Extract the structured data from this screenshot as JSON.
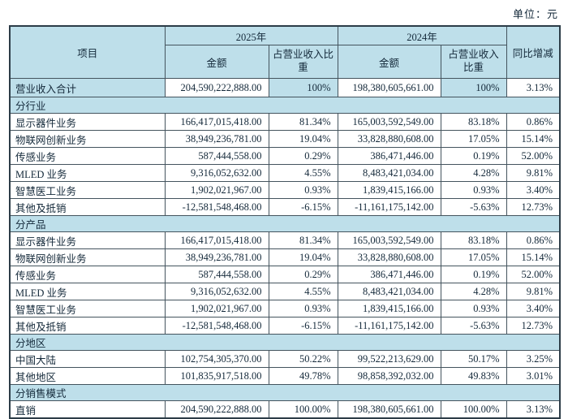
{
  "unit_label": "单位：元",
  "colors": {
    "header_blue": "#bedfea",
    "border": "#44545e",
    "text": "#14293a"
  },
  "table": {
    "header": {
      "item": "项目",
      "y2025": "2025年",
      "y2024": "2024年",
      "amount": "金额",
      "ratio": "占营业收入比重",
      "yoy": "同比增减"
    },
    "rows": [
      {
        "type": "total",
        "label": "营业收入合计",
        "a2025": "204,590,222,888.00",
        "p2025": "100%",
        "a2024": "198,380,605,661.00",
        "p2024": "100%",
        "yoy": "3.13%"
      },
      {
        "type": "section",
        "label": "分行业"
      },
      {
        "type": "data",
        "label": "显示器件业务",
        "a2025": "166,417,015,418.00",
        "p2025": "81.34%",
        "a2024": "165,003,592,549.00",
        "p2024": "83.18%",
        "yoy": "0.86%"
      },
      {
        "type": "data",
        "label": "物联网创新业务",
        "a2025": "38,949,236,781.00",
        "p2025": "19.04%",
        "a2024": "33,828,880,608.00",
        "p2024": "17.05%",
        "yoy": "15.14%"
      },
      {
        "type": "data",
        "label": "传感业务",
        "a2025": "587,444,558.00",
        "p2025": "0.29%",
        "a2024": "386,471,446.00",
        "p2024": "0.19%",
        "yoy": "52.00%"
      },
      {
        "type": "data",
        "label": "MLED 业务",
        "a2025": "9,316,052,632.00",
        "p2025": "4.55%",
        "a2024": "8,483,421,034.00",
        "p2024": "4.28%",
        "yoy": "9.81%"
      },
      {
        "type": "data",
        "label": "智慧医工业务",
        "a2025": "1,902,021,967.00",
        "p2025": "0.93%",
        "a2024": "1,839,415,166.00",
        "p2024": "0.93%",
        "yoy": "3.40%"
      },
      {
        "type": "data",
        "label": "其他及抵销",
        "a2025": "-12,581,548,468.00",
        "p2025": "-6.15%",
        "a2024": "-11,161,175,142.00",
        "p2024": "-5.63%",
        "yoy": "12.73%"
      },
      {
        "type": "section",
        "label": "分产品"
      },
      {
        "type": "data",
        "label": "显示器件业务",
        "a2025": "166,417,015,418.00",
        "p2025": "81.34%",
        "a2024": "165,003,592,549.00",
        "p2024": "83.18%",
        "yoy": "0.86%"
      },
      {
        "type": "data",
        "label": "物联网创新业务",
        "a2025": "38,949,236,781.00",
        "p2025": "19.04%",
        "a2024": "33,828,880,608.00",
        "p2024": "17.05%",
        "yoy": "15.14%"
      },
      {
        "type": "data",
        "label": "传感业务",
        "a2025": "587,444,558.00",
        "p2025": "0.29%",
        "a2024": "386,471,446.00",
        "p2024": "0.19%",
        "yoy": "52.00%"
      },
      {
        "type": "data",
        "label": "MLED 业务",
        "a2025": "9,316,052,632.00",
        "p2025": "4.55%",
        "a2024": "8,483,421,034.00",
        "p2024": "4.28%",
        "yoy": "9.81%"
      },
      {
        "type": "data",
        "label": "智慧医工业务",
        "a2025": "1,902,021,967.00",
        "p2025": "0.93%",
        "a2024": "1,839,415,166.00",
        "p2024": "0.93%",
        "yoy": "3.40%"
      },
      {
        "type": "data",
        "label": "其他及抵销",
        "a2025": "-12,581,548,468.00",
        "p2025": "-6.15%",
        "a2024": "-11,161,175,142.00",
        "p2024": "-5.63%",
        "yoy": "12.73%"
      },
      {
        "type": "section",
        "label": "分地区"
      },
      {
        "type": "data",
        "label": "中国大陆",
        "a2025": "102,754,305,370.00",
        "p2025": "50.22%",
        "a2024": "99,522,213,629.00",
        "p2024": "50.17%",
        "yoy": "3.25%"
      },
      {
        "type": "data",
        "label": "其他地区",
        "a2025": "101,835,917,518.00",
        "p2025": "49.78%",
        "a2024": "98,858,392,032.00",
        "p2024": "49.83%",
        "yoy": "3.01%"
      },
      {
        "type": "section",
        "label": "分销售模式"
      },
      {
        "type": "data",
        "label": "直销",
        "a2025": "204,590,222,888.00",
        "p2025": "100.00%",
        "a2024": "198,380,605,661.00",
        "p2024": "100.00%",
        "yoy": "3.13%"
      }
    ]
  }
}
